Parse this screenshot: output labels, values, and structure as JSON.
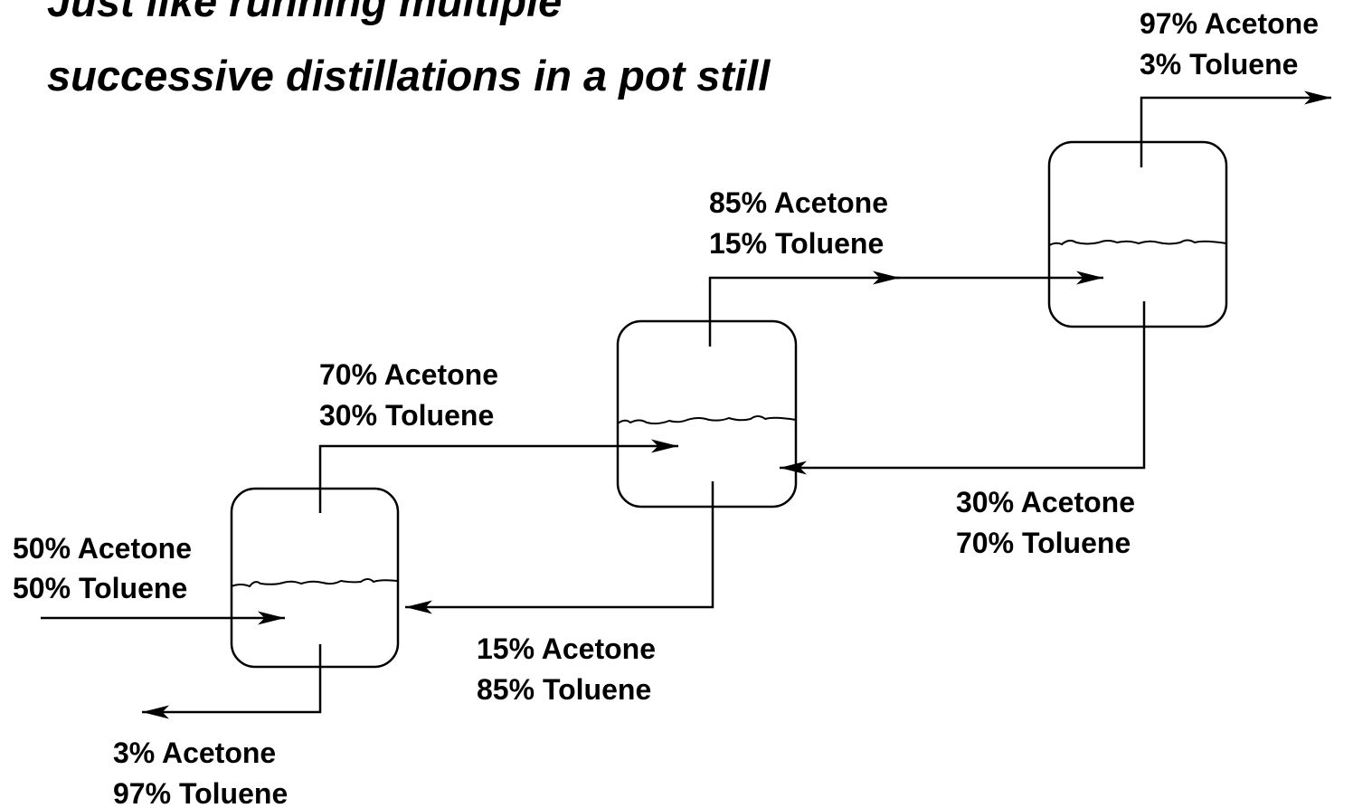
{
  "title": [
    "Just like running multiple",
    "successive distillations in a pot still"
  ],
  "streams": [
    {
      "lines": [
        "50% Acetone",
        "50% Toluene"
      ]
    },
    {
      "lines": [
        "70% Acetone",
        "30% Toluene"
      ]
    },
    {
      "lines": [
        "85% Acetone",
        "15% Toluene"
      ]
    },
    {
      "lines": [
        "97% Acetone",
        "3% Toluene"
      ]
    },
    {
      "lines": [
        "30% Acetone",
        "70% Toluene"
      ]
    },
    {
      "lines": [
        "15% Acetone",
        "85% Toluene"
      ]
    },
    {
      "lines": [
        "3% Acetone",
        "97% Toluene"
      ]
    }
  ]
}
